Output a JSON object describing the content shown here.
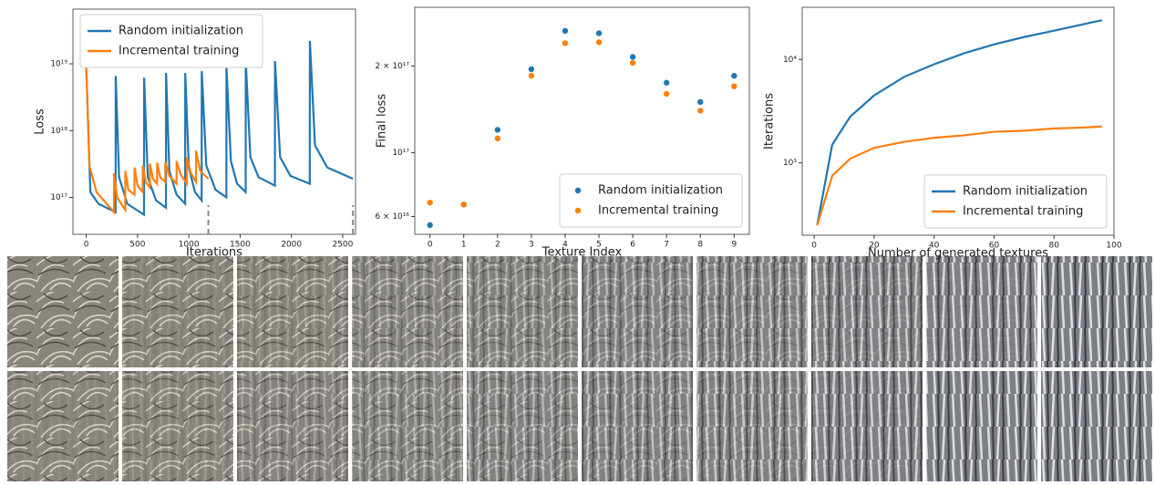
{
  "chart_data": [
    {
      "type": "line",
      "log_y": true,
      "xlabel": "Iterations",
      "ylabel": "Loss",
      "legend": "upper left",
      "xlim": [
        -130,
        2625
      ],
      "ylim": [
        2.8e+16,
        6.6e+19
      ],
      "xticks": [
        0,
        500,
        1000,
        1500,
        2000,
        2500
      ],
      "yticks": [
        {
          "value": 1e+17,
          "label": "10¹⁷"
        },
        {
          "value": 1e+18,
          "label": "10¹⁸"
        },
        {
          "value": 1e+19,
          "label": "10¹⁹"
        }
      ],
      "vlines": [
        1190,
        2600
      ],
      "series": [
        {
          "name": "Random initialization",
          "color": "#1f77b4",
          "x": [
            0,
            40,
            120,
            286,
            287,
            320,
            400,
            563,
            564,
            600,
            680,
            777,
            778,
            810,
            880,
            964,
            965,
            1000,
            1060,
            1125,
            1126,
            1170,
            1260,
            1366,
            1367,
            1410,
            1470,
            1554,
            1555,
            1600,
            1680,
            1839,
            1840,
            1890,
            1990,
            2179,
            2180,
            2230,
            2350,
            2600
          ],
          "values": [
            9e+18,
            1.2e+17,
            8e+16,
            6e+16,
            6.6e+18,
            2e+17,
            8e+16,
            5.5e+16,
            6.2e+18,
            2e+17,
            9e+16,
            7e+16,
            7.3e+18,
            2.5e+17,
            1.1e+17,
            8e+16,
            7.3e+18,
            2.8e+17,
            1.2e+17,
            9e+16,
            7.8e+18,
            3e+17,
            1.3e+17,
            1e+17,
            8.8e+18,
            3.5e+17,
            1.6e+17,
            1.2e+17,
            1.1e+19,
            4e+17,
            2e+17,
            1.5e+17,
            1.1e+19,
            4e+17,
            2.1e+17,
            1.6e+17,
            2.2e+19,
            6e+17,
            2.8e+17,
            1.9e+17
          ]
        },
        {
          "name": "Incremental training",
          "color": "#ff7f0e",
          "x": [
            0,
            30,
            100,
            200,
            270,
            271,
            300,
            380,
            381,
            410,
            470,
            471,
            500,
            550,
            551,
            580,
            620,
            621,
            650,
            690,
            691,
            720,
            770,
            771,
            810,
            880,
            881,
            920,
            980,
            981,
            1020,
            1070,
            1071,
            1110,
            1190
          ],
          "values": [
            9e+18,
            3e+17,
            1.2e+17,
            8e+16,
            6e+16,
            2.3e+17,
            1e+17,
            6.5e+16,
            2.5e+17,
            1.3e+17,
            1.1e+17,
            2.8e+17,
            1.5e+17,
            1.2e+17,
            3e+17,
            1.7e+17,
            1.4e+17,
            3.2e+17,
            1.9e+17,
            1.6e+17,
            3.3e+17,
            2e+17,
            1.7e+17,
            3.4e+17,
            2.1e+17,
            1.6e+17,
            3.5e+17,
            2.2e+17,
            1.6e+17,
            4e+17,
            2.3e+17,
            1.7e+17,
            5e+17,
            2.5e+17,
            1.9e+17
          ]
        }
      ]
    },
    {
      "type": "scatter",
      "log_y": true,
      "xlabel": "Texture Index",
      "ylabel": "Final loss",
      "legend": "lower right",
      "xlim": [
        -0.45,
        9.45
      ],
      "ylim": [
        5.2e+16,
        3.2e+17
      ],
      "xticks": [
        0,
        1,
        2,
        3,
        4,
        5,
        6,
        7,
        8,
        9
      ],
      "yticks": [
        {
          "value": 6e+16,
          "label": "6 × 10¹⁶"
        },
        {
          "value": 1e+17,
          "label": "10¹⁷"
        },
        {
          "value": 2e+17,
          "label": "2 × 10¹⁷"
        }
      ],
      "x": [
        0,
        1,
        2,
        3,
        4,
        5,
        6,
        7,
        8,
        9
      ],
      "series": [
        {
          "name": "Random initialization",
          "color": "#1f77b4",
          "values": [
            5.6e+16,
            6.6e+16,
            1.2e+17,
            1.95e+17,
            2.65e+17,
            2.6e+17,
            2.15e+17,
            1.75e+17,
            1.5e+17,
            1.85e+17
          ]
        },
        {
          "name": "Incremental training",
          "color": "#ff7f0e",
          "values": [
            6.7e+16,
            6.6e+16,
            1.12e+17,
            1.85e+17,
            2.4e+17,
            2.42e+17,
            2.05e+17,
            1.6e+17,
            1.4e+17,
            1.7e+17
          ]
        }
      ]
    },
    {
      "type": "line",
      "log_y": true,
      "xlabel": "Number of generated textures",
      "ylabel": "Iterations",
      "legend": "lower right",
      "xlim": [
        -4,
        100
      ],
      "ylim": [
        200,
        32000
      ],
      "xticks": [
        0,
        20,
        40,
        60,
        80,
        100
      ],
      "yticks": [
        {
          "value": 1000,
          "label": "10³"
        },
        {
          "value": 10000,
          "label": "10⁴"
        }
      ],
      "x": [
        1,
        6,
        12,
        20,
        30,
        40,
        50,
        60,
        70,
        80,
        90,
        96
      ],
      "series": [
        {
          "name": "Random initialization",
          "color": "#1f77b4",
          "values": [
            250,
            1500,
            2800,
            4500,
            6800,
            9000,
            11500,
            14000,
            16500,
            19000,
            22000,
            24000
          ]
        },
        {
          "name": "Incremental training",
          "color": "#ff7f0e",
          "values": [
            250,
            750,
            1100,
            1400,
            1600,
            1750,
            1850,
            2000,
            2050,
            2150,
            2200,
            2250
          ]
        }
      ]
    }
  ]
}
